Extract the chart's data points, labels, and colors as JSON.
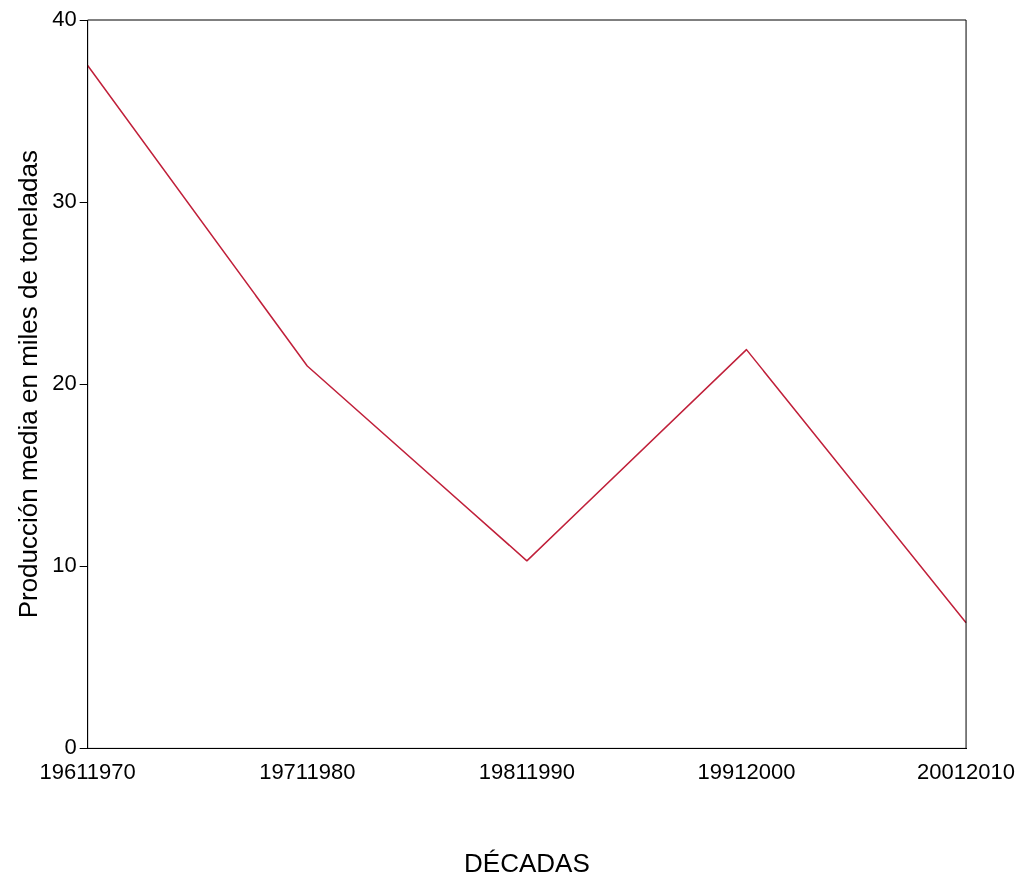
{
  "chart_data": {
    "type": "line",
    "xlabel": "DÉCADAS",
    "ylabel": "Producción media en miles de toneladas",
    "categories": [
      "19611970",
      "19711980",
      "19811990",
      "19912000",
      "20012010"
    ],
    "series": [
      {
        "color": "#c0203a",
        "values": [
          37.5,
          21,
          10.3,
          21.9,
          6.9
        ]
      }
    ],
    "ylim": [
      0,
      40
    ],
    "yticks": [
      0,
      10,
      20,
      30,
      40
    ],
    "grid": false,
    "legend": false,
    "marker": "none",
    "line_style": "solid"
  }
}
